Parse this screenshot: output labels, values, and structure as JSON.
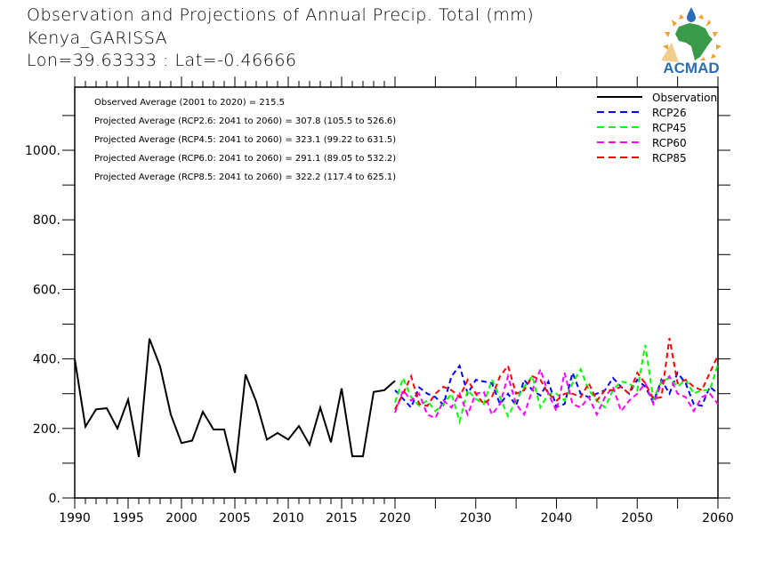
{
  "header": {
    "title": "Observation and Projections of Annual Precip. Total (mm)",
    "location": "Kenya_GARISSA",
    "coords": "Lon=39.63333 : Lat=-0.46666"
  },
  "logo": {
    "text": "ACMAD",
    "colors": {
      "africa": "#3a9a4a",
      "text": "#2a6fb5",
      "rays": "#f0a030",
      "drop": "#2a6fb5"
    }
  },
  "annotations": [
    "Observed Average (2001 to 2020) = 215.5",
    "Projected Average (RCP2.6: 2041 to 2060) = 307.8 (105.5 to 526.6)",
    "Projected Average (RCP4.5: 2041 to 2060) = 323.1 (99.22 to 631.5)",
    "Projected Average (RCP6.0: 2041 to 2060) = 291.1 (89.05 to 532.2)",
    "Projected Average (RCP8.5: 2041 to 2060) = 322.2 (117.4 to 625.1)"
  ],
  "chart_data": {
    "type": "line",
    "title": "Observation and Projections of Annual Precip. Total (mm)",
    "xlabel": "",
    "ylabel": "",
    "ylim": [
      0,
      1180
    ],
    "yticks": [
      0,
      200,
      400,
      600,
      800,
      1000
    ],
    "ytick_labels": [
      "0.",
      "200.",
      "400.",
      "600.",
      "800.",
      "1000."
    ],
    "xticks": [
      1990,
      1995,
      2000,
      2005,
      2010,
      2015,
      2020,
      2030,
      2040,
      2050,
      2060
    ],
    "xtick_labels": [
      "1990",
      "1995",
      "2000",
      "2005",
      "2010",
      "2015",
      "2020",
      "2030",
      "2040",
      "2050",
      "2060"
    ],
    "legend_position": "top-right",
    "series": [
      {
        "name": "Observation",
        "color": "#000000",
        "dash": "solid",
        "x": [
          1990,
          1991,
          1992,
          1993,
          1994,
          1995,
          1996,
          1997,
          1998,
          1999,
          2000,
          2001,
          2002,
          2003,
          2004,
          2005,
          2006,
          2007,
          2008,
          2009,
          2010,
          2011,
          2012,
          2013,
          2014,
          2015,
          2016,
          2017,
          2018,
          2019,
          2020
        ],
        "values": [
          400,
          205,
          255,
          258,
          200,
          283,
          118,
          458,
          378,
          240,
          158,
          165,
          248,
          197,
          197,
          72,
          355,
          277,
          168,
          187,
          168,
          207,
          153,
          260,
          160,
          315,
          120,
          120,
          305,
          310,
          337
        ]
      },
      {
        "name": "RCP26",
        "color": "#0000ff",
        "dash": "dashed",
        "x": [
          2020,
          2021,
          2022,
          2023,
          2024,
          2025,
          2026,
          2027,
          2028,
          2029,
          2030,
          2031,
          2032,
          2033,
          2034,
          2035,
          2036,
          2037,
          2038,
          2039,
          2040,
          2041,
          2042,
          2043,
          2044,
          2045,
          2046,
          2047,
          2048,
          2049,
          2050,
          2051,
          2052,
          2053,
          2054,
          2055,
          2056,
          2057,
          2058,
          2059,
          2060
        ],
        "values": [
          310,
          285,
          260,
          318,
          300,
          290,
          268,
          350,
          380,
          300,
          340,
          335,
          330,
          270,
          300,
          265,
          340,
          310,
          295,
          335,
          262,
          270,
          360,
          300,
          290,
          300,
          310,
          345,
          320,
          300,
          340,
          320,
          275,
          340,
          300,
          360,
          330,
          270,
          265,
          320,
          300
        ]
      },
      {
        "name": "RCP45",
        "color": "#00ff00",
        "dash": "dashed",
        "x": [
          2020,
          2021,
          2022,
          2023,
          2024,
          2025,
          2026,
          2027,
          2028,
          2029,
          2030,
          2031,
          2032,
          2033,
          2034,
          2035,
          2036,
          2037,
          2038,
          2039,
          2040,
          2041,
          2042,
          2043,
          2044,
          2045,
          2046,
          2047,
          2048,
          2049,
          2050,
          2051,
          2052,
          2053,
          2054,
          2055,
          2056,
          2057,
          2058,
          2059,
          2060
        ],
        "values": [
          275,
          345,
          290,
          265,
          280,
          250,
          270,
          300,
          220,
          310,
          285,
          270,
          340,
          290,
          235,
          280,
          320,
          350,
          260,
          300,
          300,
          280,
          330,
          370,
          310,
          280,
          260,
          310,
          335,
          330,
          310,
          440,
          285,
          335,
          345,
          320,
          340,
          300,
          310,
          310,
          385
        ]
      },
      {
        "name": "RCP60",
        "color": "#ff00ff",
        "dash": "dashed",
        "x": [
          2020,
          2021,
          2022,
          2023,
          2024,
          2025,
          2026,
          2027,
          2028,
          2029,
          2030,
          2031,
          2032,
          2033,
          2034,
          2035,
          2036,
          2037,
          2038,
          2039,
          2040,
          2041,
          2042,
          2043,
          2044,
          2045,
          2046,
          2047,
          2048,
          2049,
          2050,
          2051,
          2052,
          2053,
          2054,
          2055,
          2056,
          2057,
          2058,
          2059,
          2060
        ],
        "values": [
          245,
          310,
          280,
          300,
          240,
          230,
          280,
          260,
          300,
          240,
          300,
          305,
          240,
          270,
          350,
          270,
          240,
          310,
          370,
          300,
          250,
          360,
          270,
          260,
          290,
          240,
          290,
          320,
          250,
          280,
          300,
          330,
          270,
          330,
          350,
          300,
          290,
          250,
          290,
          300,
          270
        ]
      },
      {
        "name": "RCP85",
        "color": "#ff0000",
        "dash": "dashed",
        "x": [
          2020,
          2021,
          2022,
          2023,
          2024,
          2025,
          2026,
          2027,
          2028,
          2029,
          2030,
          2031,
          2032,
          2033,
          2034,
          2035,
          2036,
          2037,
          2038,
          2039,
          2040,
          2041,
          2042,
          2043,
          2044,
          2045,
          2046,
          2047,
          2048,
          2049,
          2050,
          2051,
          2052,
          2053,
          2054,
          2055,
          2056,
          2057,
          2058,
          2059,
          2060
        ],
        "values": [
          255,
          300,
          350,
          270,
          265,
          300,
          320,
          310,
          290,
          340,
          300,
          270,
          290,
          350,
          380,
          300,
          310,
          350,
          340,
          300,
          280,
          300,
          300,
          290,
          330,
          280,
          310,
          310,
          320,
          300,
          360,
          330,
          285,
          290,
          460,
          330,
          340,
          320,
          310,
          360,
          410
        ]
      }
    ]
  }
}
